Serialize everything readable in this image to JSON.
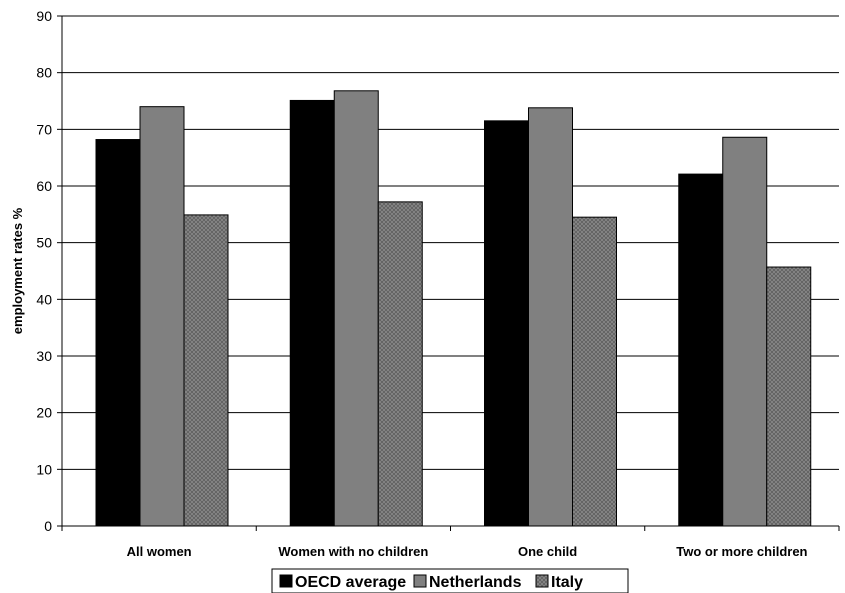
{
  "chart_data": {
    "type": "bar",
    "categories": [
      "All women",
      "Women with no children",
      "One child",
      "Two or more children"
    ],
    "series": [
      {
        "name": "OECD average",
        "values": [
          68.2,
          75.1,
          71.5,
          62.1
        ],
        "color": "#000000"
      },
      {
        "name": "Netherlands",
        "values": [
          74.0,
          76.8,
          73.8,
          68.6
        ],
        "color": "#808080"
      },
      {
        "name": "Italy",
        "values": [
          54.9,
          57.2,
          54.5,
          45.7
        ],
        "color": "#8a8a8a"
      }
    ],
    "ylabel": "employment rates %",
    "ylim": [
      0,
      90
    ],
    "yticks": [
      0,
      10,
      20,
      30,
      40,
      50,
      60,
      70,
      80,
      90
    ],
    "grid": true,
    "legend_position": "bottom"
  }
}
